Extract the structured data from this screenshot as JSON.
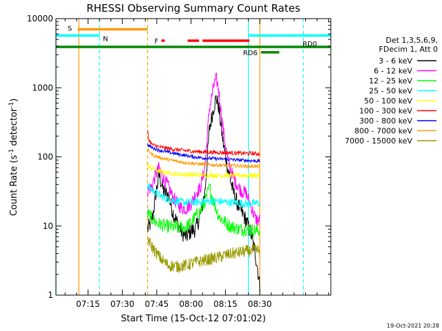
{
  "chart_data": {
    "type": "line",
    "title": "RHESSI Observing Summary Count Rates",
    "xlabel": "Start Time (15-Oct-12 07:01:02)",
    "ylabel": "Count Rate (s⁻¹ detector⁻¹)",
    "ylabel_parts": {
      "base": "Count Rate (s",
      "sup1": "-1",
      "mid": " detector",
      "sup2": "-1",
      "end": ")"
    },
    "yscale": "log",
    "xlim_min": [
      0,
      120
    ],
    "ylim": [
      1,
      10000
    ],
    "x_tick_values_min": [
      14,
      29,
      44,
      59,
      74,
      89
    ],
    "x_tick_labels": [
      "07:15",
      "07:30",
      "07:45",
      "08:00",
      "08:15",
      "08:30"
    ],
    "y_tick_values": [
      1,
      10,
      100,
      1000,
      10000
    ],
    "y_tick_labels": [
      "1",
      "10",
      "100",
      "1000",
      "10000"
    ],
    "legend_header": [
      "Det 1,3,5,6,9,",
      "FDecim 1, Att 0"
    ],
    "series": [
      {
        "name": "3 - 6 keV",
        "color": "#000000",
        "points": [
          [
            40,
            9
          ],
          [
            42,
            12
          ],
          [
            43.5,
            28
          ],
          [
            45,
            55
          ],
          [
            47,
            32
          ],
          [
            49,
            28
          ],
          [
            51,
            16
          ],
          [
            53,
            11
          ],
          [
            55,
            8
          ],
          [
            57,
            7
          ],
          [
            59,
            8.5
          ],
          [
            61,
            9
          ],
          [
            63,
            14
          ],
          [
            65,
            30
          ],
          [
            67,
            250
          ],
          [
            69,
            550
          ],
          [
            70,
            720
          ],
          [
            71,
            540
          ],
          [
            73,
            160
          ],
          [
            75,
            70
          ],
          [
            77,
            35
          ],
          [
            79,
            22
          ],
          [
            81,
            16
          ],
          [
            83,
            12
          ],
          [
            85,
            8
          ],
          [
            87,
            4
          ],
          [
            88,
            2.5
          ],
          [
            89,
            1.3
          ]
        ]
      },
      {
        "name": "6 - 12 keV",
        "color": "#ff00ff",
        "points": [
          [
            40,
            32
          ],
          [
            42,
            38
          ],
          [
            43.5,
            55
          ],
          [
            45,
            70
          ],
          [
            47,
            48
          ],
          [
            49,
            38
          ],
          [
            51,
            26
          ],
          [
            53,
            21
          ],
          [
            55,
            18
          ],
          [
            57,
            18
          ],
          [
            59,
            21
          ],
          [
            61,
            30
          ],
          [
            63,
            35
          ],
          [
            65,
            70
          ],
          [
            67,
            500
          ],
          [
            69,
            1100
          ],
          [
            70,
            1350
          ],
          [
            71,
            950
          ],
          [
            73,
            250
          ],
          [
            75,
            90
          ],
          [
            77,
            55
          ],
          [
            79,
            40
          ],
          [
            81,
            32
          ],
          [
            83,
            30
          ],
          [
            85,
            20
          ],
          [
            87,
            13
          ],
          [
            88,
            12
          ],
          [
            89,
            12
          ]
        ]
      },
      {
        "name": "12 - 25 keV",
        "color": "#00ff00",
        "points": [
          [
            40,
            15
          ],
          [
            44,
            11
          ],
          [
            48,
            10
          ],
          [
            52,
            9.5
          ],
          [
            56,
            9.5
          ],
          [
            59,
            11
          ],
          [
            61,
            14
          ],
          [
            63,
            16
          ],
          [
            65,
            22
          ],
          [
            67,
            36
          ],
          [
            69,
            22
          ],
          [
            71,
            14
          ],
          [
            73,
            12
          ],
          [
            76,
            10
          ],
          [
            80,
            9
          ],
          [
            84,
            9
          ],
          [
            88,
            8.5
          ],
          [
            89,
            8.5
          ]
        ]
      },
      {
        "name": "25 - 50 keV",
        "color": "#00ffff",
        "points": [
          [
            40,
            38
          ],
          [
            42,
            33
          ],
          [
            45,
            28
          ],
          [
            48,
            25
          ],
          [
            52,
            23
          ],
          [
            56,
            22
          ],
          [
            60,
            22
          ],
          [
            64,
            22.5
          ],
          [
            68,
            23
          ],
          [
            72,
            22.5
          ],
          [
            76,
            22
          ],
          [
            80,
            21.5
          ],
          [
            84,
            21
          ],
          [
            88,
            21.5
          ],
          [
            89,
            21.5
          ]
        ]
      },
      {
        "name": "50 - 100 keV",
        "color": "#ffff00",
        "points": [
          [
            40,
            75
          ],
          [
            42,
            68
          ],
          [
            45,
            62
          ],
          [
            50,
            58
          ],
          [
            55,
            56
          ],
          [
            60,
            55
          ],
          [
            65,
            54.5
          ],
          [
            70,
            54
          ],
          [
            75,
            54
          ],
          [
            80,
            54
          ],
          [
            85,
            54
          ],
          [
            89,
            54
          ]
        ]
      },
      {
        "name": "100 - 300 keV",
        "color": "#ff0000",
        "points": [
          [
            40,
            240
          ],
          [
            40.5,
            180
          ],
          [
            42,
            150
          ],
          [
            45,
            140
          ],
          [
            50,
            130
          ],
          [
            55,
            125
          ],
          [
            60,
            120
          ],
          [
            65,
            118
          ],
          [
            70,
            116
          ],
          [
            75,
            115
          ],
          [
            80,
            113
          ],
          [
            85,
            112
          ],
          [
            89,
            111
          ]
        ]
      },
      {
        "name": "300 - 800 keV",
        "color": "#0000ff",
        "points": [
          [
            40,
            150
          ],
          [
            42,
            135
          ],
          [
            45,
            125
          ],
          [
            50,
            115
          ],
          [
            55,
            107
          ],
          [
            60,
            100
          ],
          [
            65,
            96
          ],
          [
            70,
            94
          ],
          [
            75,
            92
          ],
          [
            80,
            90
          ],
          [
            85,
            88
          ],
          [
            89,
            87
          ]
        ]
      },
      {
        "name": "800 - 7000 keV",
        "color": "#ff9900",
        "points": [
          [
            40,
            125
          ],
          [
            42,
            108
          ],
          [
            45,
            98
          ],
          [
            50,
            90
          ],
          [
            55,
            84
          ],
          [
            60,
            80
          ],
          [
            65,
            78
          ],
          [
            70,
            76
          ],
          [
            75,
            75
          ],
          [
            80,
            74
          ],
          [
            85,
            73
          ],
          [
            89,
            73
          ]
        ]
      },
      {
        "name": "7000 - 15000 keV",
        "color": "#999900",
        "points": [
          [
            40,
            6.5
          ],
          [
            42,
            5
          ],
          [
            44,
            4
          ],
          [
            46,
            3.3
          ],
          [
            49,
            2.7
          ],
          [
            53,
            2.6
          ],
          [
            57,
            2.7
          ],
          [
            61,
            3
          ],
          [
            65,
            3.2
          ],
          [
            69,
            3.4
          ],
          [
            73,
            3.7
          ],
          [
            77,
            4
          ],
          [
            81,
            4.2
          ],
          [
            85,
            4.4
          ],
          [
            89,
            4.4
          ]
        ]
      }
    ],
    "state_bars": [
      {
        "label": "S",
        "color": "#ff9900",
        "start": 9.5,
        "end": 40,
        "level": 7000
      },
      {
        "label": "N",
        "color": "#00ffff",
        "start": 0,
        "end": 19,
        "level": 5700
      },
      {
        "label": "N",
        "color": "#00ffff",
        "start": 84,
        "end": 120,
        "level": 5700
      },
      {
        "label": "F",
        "color": "#ff0000",
        "start": 46,
        "end": 47.5,
        "level": 4800,
        "label_text": "F"
      },
      {
        "label": "F",
        "color": "#ff0000",
        "start": 57.5,
        "end": 62.5,
        "level": 4800
      },
      {
        "label": "F",
        "color": "#ff0000",
        "start": 64,
        "end": 84.5,
        "level": 4800
      },
      {
        "label": "RD0",
        "color": "#008800",
        "start": 0,
        "end": 120,
        "level": 3900
      },
      {
        "label": "RD6",
        "color": "#008800",
        "start": 89.5,
        "end": 97.5,
        "level": 3250
      }
    ],
    "state_labels": [
      {
        "text": "S",
        "color": "#ff9900"
      },
      {
        "text": "N",
        "color": "#00ffff"
      },
      {
        "text": "F",
        "color": "#ff0000"
      },
      {
        "text": "RD0",
        "color": "#008800"
      },
      {
        "text": "RD6",
        "color": "#008800"
      }
    ],
    "vertical_markers": [
      {
        "x": 0,
        "color": "#00ffff",
        "style": "solid"
      },
      {
        "x": 10,
        "color": "#ff9900",
        "style": "solid"
      },
      {
        "x": 19,
        "color": "#00ffff",
        "style": "dashed"
      },
      {
        "x": 40,
        "color": "#ff9900",
        "style": "dashed"
      },
      {
        "x": 84,
        "color": "#00ffff",
        "style": "solid"
      },
      {
        "x": 89,
        "color": "#ff9900",
        "style": "solid"
      },
      {
        "x": 108,
        "color": "#00ffff",
        "style": "dashed"
      }
    ],
    "footer_timestamp": "19-Oct-2021 20:28"
  }
}
